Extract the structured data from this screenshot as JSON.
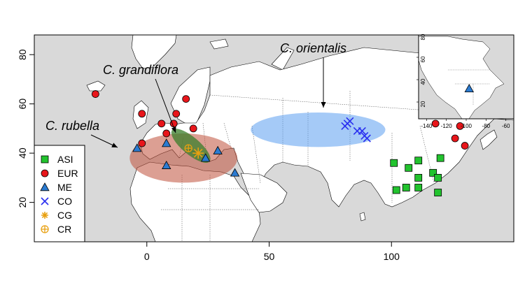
{
  "map": {
    "x_axis": {
      "range": [
        -46,
        150
      ],
      "ticks": [
        0,
        50,
        100
      ],
      "tick_labels": [
        "0",
        "50",
        "100"
      ]
    },
    "y_axis": {
      "range": [
        4,
        88
      ],
      "ticks": [
        20,
        40,
        60,
        80
      ],
      "tick_labels": [
        "20",
        "40",
        "60",
        "80"
      ]
    },
    "colors": {
      "land": "#ffffff",
      "sea": "#d9d9d9",
      "border": "#000000"
    }
  },
  "annotations": [
    {
      "id": "rubella",
      "label": "C. rubella",
      "target": [
        -8,
        41
      ]
    },
    {
      "id": "grandiflora",
      "label": "C. grandiflora",
      "target": [
        12,
        42
      ]
    },
    {
      "id": "orientalis",
      "label": "C. orientalis",
      "target": [
        70,
        50
      ]
    }
  ],
  "regions": [
    {
      "id": "rubella",
      "species": "C. rubella",
      "center_lon": 15,
      "center_lat": 38,
      "half_width_lon": 22,
      "half_height_lat": 10,
      "color": "#c0503a",
      "opacity": 0.55
    },
    {
      "id": "orientalis",
      "species": "C. orientalis",
      "center_lon": 70,
      "center_lat": 49.5,
      "half_width_lon": 27.5,
      "half_height_lat": 7,
      "color": "#5b9ff0",
      "opacity": 0.55
    },
    {
      "id": "grandiflora",
      "species": "C. grandiflora",
      "center_lon": 18,
      "center_lat": 43,
      "half_width_lon": 10,
      "half_height_lat": 3.5,
      "rotation_deg": 40,
      "color": "#3a7d2a",
      "opacity": 0.75
    }
  ],
  "legend": [
    {
      "code": "ASI",
      "marker": "square",
      "color": "#22c32e"
    },
    {
      "code": "EUR",
      "marker": "circle",
      "color": "#e8161b"
    },
    {
      "code": "ME",
      "marker": "triangle",
      "color": "#2b7bd1"
    },
    {
      "code": "CO",
      "marker": "x",
      "color": "#2a2ff0"
    },
    {
      "code": "CG",
      "marker": "asterisk",
      "color": "#e8a010"
    },
    {
      "code": "CR",
      "marker": "circle-plus",
      "color": "#e8a010"
    }
  ],
  "points": {
    "ASI": [
      [
        101,
        36
      ],
      [
        102,
        25
      ],
      [
        106,
        26
      ],
      [
        107,
        34
      ],
      [
        111,
        37
      ],
      [
        111,
        30
      ],
      [
        111,
        26
      ],
      [
        117,
        32
      ],
      [
        119,
        30
      ],
      [
        119,
        24
      ],
      [
        120,
        38
      ]
    ],
    "EUR": [
      [
        -21,
        64
      ],
      [
        -2,
        44
      ],
      [
        -2,
        56
      ],
      [
        6,
        52
      ],
      [
        8,
        48
      ],
      [
        11,
        52
      ],
      [
        12,
        56
      ],
      [
        16,
        62
      ],
      [
        19,
        50
      ],
      [
        118,
        52
      ],
      [
        126,
        46
      ],
      [
        128,
        51
      ],
      [
        130,
        43
      ]
    ],
    "ME": [
      [
        -4,
        42
      ],
      [
        8,
        44
      ],
      [
        8,
        35
      ],
      [
        24,
        38
      ],
      [
        29,
        41
      ],
      [
        36,
        32
      ]
    ],
    "CO": [
      [
        81,
        51
      ],
      [
        82,
        52
      ],
      [
        83,
        53
      ],
      [
        86,
        49
      ],
      [
        88,
        49
      ],
      [
        89,
        47
      ],
      [
        90,
        46
      ]
    ],
    "CG": [
      [
        21,
        40
      ]
    ],
    "CR": [
      [
        17,
        42
      ]
    ]
  },
  "inset": {
    "x_axis": {
      "range": [
        -148,
        -52
      ],
      "ticks": [
        -140,
        -120,
        -100,
        -80,
        -60
      ],
      "tick_labels": [
        "-140",
        "-120",
        "-100",
        "-80",
        "-60"
      ]
    },
    "y_axis": {
      "range": [
        5,
        80
      ],
      "ticks": [
        20,
        40,
        60,
        80
      ],
      "tick_labels": [
        "20",
        "40",
        "60",
        "80"
      ]
    },
    "points": {
      "ME": [
        [
          -97,
          32
        ]
      ]
    }
  }
}
